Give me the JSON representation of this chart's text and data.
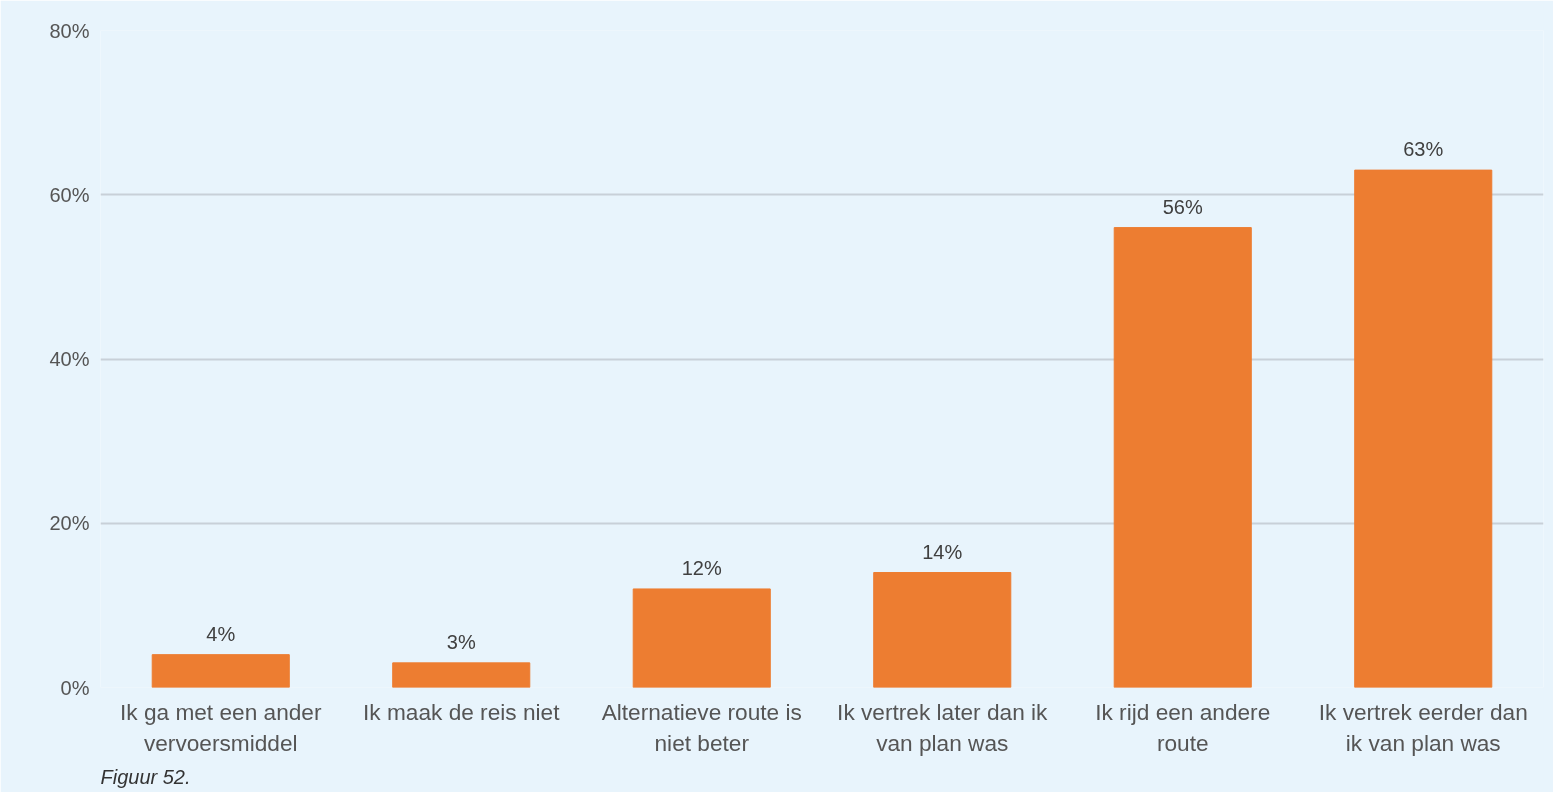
{
  "chart_data": {
    "type": "bar",
    "categories": [
      "Ik ga met een ander vervoersmiddel",
      "Ik maak de reis niet",
      "Alternatieve route is niet beter",
      "Ik vertrek later dan ik van plan was",
      "Ik rijd een andere route",
      "Ik vertrek eerder dan ik van plan was"
    ],
    "values": [
      4,
      3,
      12,
      14,
      56,
      63
    ],
    "color": "#ed7d31",
    "ylim": [
      0,
      80
    ],
    "yticks": [
      {
        "value": 0,
        "label": "0%"
      },
      {
        "value": 20,
        "label": "20%"
      },
      {
        "value": 40,
        "label": "40%"
      },
      {
        "value": 60,
        "label": "60%"
      },
      {
        "value": 80,
        "label": "80%"
      }
    ],
    "grid": "y",
    "data_labels": true,
    "value_labels": [
      "4%",
      "3%",
      "12%",
      "14%",
      "56%",
      "63%"
    ],
    "annotations": [
      "Figuur 52."
    ]
  }
}
